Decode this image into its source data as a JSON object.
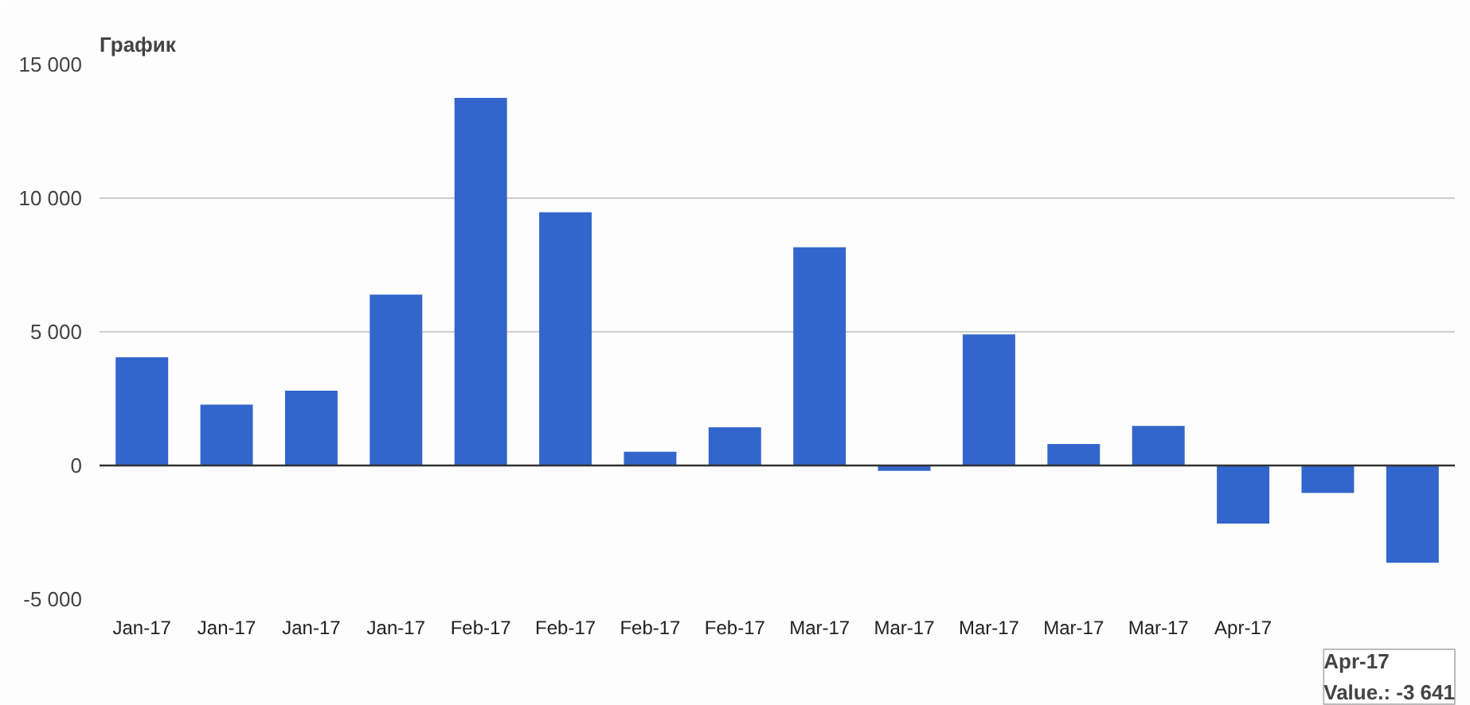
{
  "chart_data": {
    "type": "bar",
    "title": "График",
    "categories": [
      "Jan-17",
      "Jan-17",
      "Jan-17",
      "Jan-17",
      "Feb-17",
      "Feb-17",
      "Feb-17",
      "Feb-17",
      "Mar-17",
      "Mar-17",
      "Mar-17",
      "Mar-17",
      "Mar-17",
      "Apr-17",
      null,
      null
    ],
    "values": [
      4050,
      2280,
      2800,
      6390,
      13750,
      9470,
      510,
      1430,
      8160,
      -200,
      4900,
      800,
      1480,
      -2170,
      -1030,
      -3641
    ],
    "color": "#3366cc",
    "ylim": [
      -5000,
      15000
    ],
    "yticks": [
      {
        "value": -5000,
        "label": "-5 000"
      },
      {
        "value": 0,
        "label": "0"
      },
      {
        "value": 5000,
        "label": "5 000"
      },
      {
        "value": 10000,
        "label": "10 000"
      },
      {
        "value": 15000,
        "label": "15 000"
      }
    ],
    "grid": "y",
    "annotations": [
      "Apr-17\nValue.: -3 641"
    ]
  }
}
